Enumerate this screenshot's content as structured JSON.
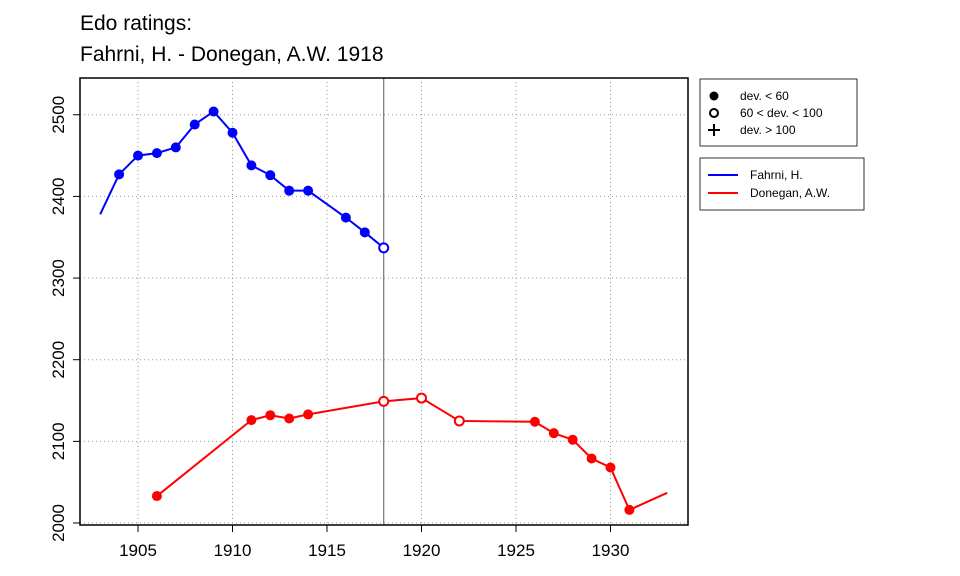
{
  "chart_data": {
    "type": "line",
    "title": "Edo ratings:",
    "subtitle": "Fahrni, H. - Donegan, A.W. 1918",
    "xlim": [
      1902,
      1934
    ],
    "ylim": [
      1995,
      2545
    ],
    "xticks": [
      1905,
      1910,
      1915,
      1920,
      1925,
      1930
    ],
    "yticks": [
      2000,
      2100,
      2200,
      2300,
      2400,
      2500
    ],
    "grid": true,
    "marker_year": 1918,
    "marker_legend": [
      {
        "symbol": "filled",
        "label": "dev. < 60"
      },
      {
        "symbol": "open",
        "label": "60 < dev. < 100"
      },
      {
        "symbol": "plus",
        "label": "dev. > 100"
      }
    ],
    "series": [
      {
        "name": "Fahrni, H.",
        "color": "#0000ff",
        "x": [
          1903,
          1904,
          1905,
          1906,
          1907,
          1908,
          1909,
          1910,
          1911,
          1912,
          1913,
          1914,
          1916,
          1917,
          1918
        ],
        "y": [
          2378,
          2427,
          2450,
          2453,
          2460,
          2488,
          2504,
          2478,
          2438,
          2426,
          2407,
          2407,
          2374,
          2356,
          2337
        ],
        "m": [
          "none",
          "filled",
          "filled",
          "filled",
          "filled",
          "filled",
          "filled",
          "filled",
          "filled",
          "filled",
          "filled",
          "filled",
          "filled",
          "filled",
          "open"
        ]
      },
      {
        "name": "Donegan, A.W.",
        "color": "#ff0000",
        "x": [
          1906,
          1911,
          1912,
          1913,
          1914,
          1918,
          1920,
          1922,
          1926,
          1927,
          1928,
          1929,
          1930,
          1931,
          1933
        ],
        "y": [
          2033,
          2126,
          2132,
          2128,
          2133,
          2149,
          2153,
          2125,
          2124,
          2110,
          2102,
          2079,
          2068,
          2016,
          2037
        ],
        "m": [
          "filled",
          "filled",
          "filled",
          "filled",
          "filled",
          "open",
          "open",
          "open",
          "filled",
          "filled",
          "filled",
          "filled",
          "filled",
          "filled",
          "none"
        ]
      }
    ]
  }
}
